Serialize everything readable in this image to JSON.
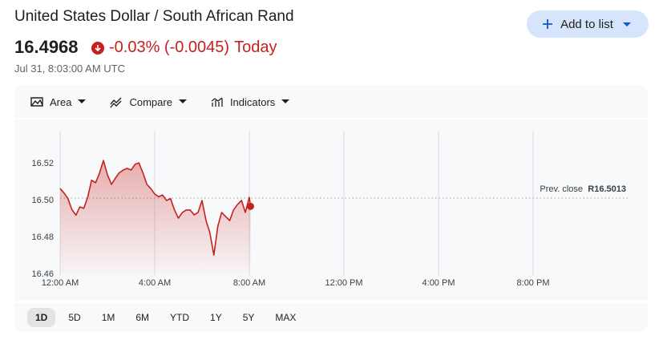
{
  "header": {
    "title": "United States Dollar / South African Rand",
    "price": "16.4968",
    "change": "-0.03% (-0.0045)",
    "period": "Today",
    "timestamp": "Jul 31, 8:03:00 AM UTC",
    "add_button": "Add to list"
  },
  "toolbar": {
    "items": [
      "Area",
      "Compare",
      "Indicators"
    ]
  },
  "range_options": {
    "items": [
      "1D",
      "5D",
      "1M",
      "6M",
      "YTD",
      "1Y",
      "5Y",
      "MAX"
    ],
    "selected": "1D"
  },
  "chart_data": {
    "type": "area",
    "color": "#c5221f",
    "x": [
      0,
      0.17,
      0.33,
      0.5,
      0.67,
      0.83,
      1.0,
      1.17,
      1.33,
      1.5,
      1.67,
      1.83,
      2.0,
      2.17,
      2.33,
      2.5,
      2.67,
      2.83,
      3.0,
      3.17,
      3.33,
      3.5,
      3.67,
      3.83,
      4.0,
      4.17,
      4.33,
      4.5,
      4.67,
      4.83,
      5.0,
      5.17,
      5.33,
      5.5,
      5.67,
      5.83,
      6.0,
      6.17,
      6.33,
      6.5,
      6.67,
      6.83,
      7.0,
      7.17,
      7.33,
      7.5,
      7.67,
      7.83,
      8.0,
      8.05
    ],
    "values": [
      16.5065,
      16.504,
      16.501,
      16.495,
      16.492,
      16.4965,
      16.4957,
      16.502,
      16.511,
      16.5096,
      16.515,
      16.5217,
      16.514,
      16.5087,
      16.512,
      16.515,
      16.5165,
      16.5174,
      16.5165,
      16.5196,
      16.5204,
      16.515,
      16.5087,
      16.5065,
      16.5035,
      16.502,
      16.503,
      16.5,
      16.501,
      16.495,
      16.4904,
      16.4935,
      16.4948,
      16.4948,
      16.4922,
      16.4935,
      16.5,
      16.4891,
      16.4826,
      16.4704,
      16.4861,
      16.4935,
      16.4913,
      16.4891,
      16.4948,
      16.4978,
      16.5,
      16.4935,
      16.5017,
      16.4968
    ],
    "xlim": [
      0,
      24
    ],
    "xticks": [
      {
        "value": 0,
        "label": "12:00 AM"
      },
      {
        "value": 4,
        "label": "4:00 AM"
      },
      {
        "value": 8,
        "label": "8:00 AM"
      },
      {
        "value": 12,
        "label": "12:00 PM"
      },
      {
        "value": 16,
        "label": "4:00 PM"
      },
      {
        "value": 20,
        "label": "8:00 PM"
      }
    ],
    "ylim": [
      16.46,
      16.54
    ],
    "yticks": [
      16.46,
      16.48,
      {
        "value": 16.5,
        "label": "16.50"
      },
      16.52
    ],
    "grid": true,
    "prev_close": {
      "label": "Prev. close",
      "value": 16.5013,
      "value_label": "R16.5013"
    }
  }
}
